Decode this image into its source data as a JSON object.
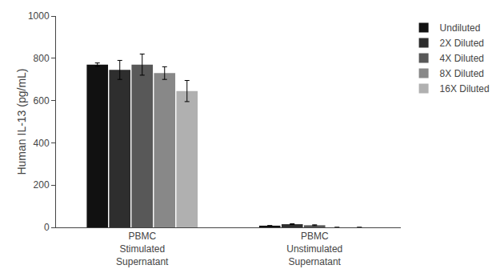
{
  "chart_data": {
    "type": "bar",
    "categories": [
      "PBMC\nStimulated\nSupernatant",
      "PBMC\nUnstimulated\nSupernatant"
    ],
    "series": [
      {
        "name": "Undiluted",
        "color": "#111111",
        "values": [
          770,
          8
        ],
        "errors": [
          8,
          0
        ]
      },
      {
        "name": "2X Diluted",
        "color": "#2e2e2e",
        "values": [
          745,
          15
        ],
        "errors": [
          45,
          2
        ]
      },
      {
        "name": "4X Diluted",
        "color": "#585858",
        "values": [
          770,
          10
        ],
        "errors": [
          50,
          2
        ]
      },
      {
        "name": "8X Diluted",
        "color": "#888888",
        "values": [
          730,
          0
        ],
        "errors": [
          30,
          0
        ]
      },
      {
        "name": "16X Diluted",
        "color": "#b0b0b0",
        "values": [
          645,
          0
        ],
        "errors": [
          50,
          0
        ]
      }
    ],
    "ylabel": "Human IL-13 (pg/mL)",
    "ylim": [
      0,
      1000
    ],
    "yticks": [
      0,
      200,
      400,
      600,
      800,
      1000
    ],
    "grid": false,
    "legend": "right"
  }
}
